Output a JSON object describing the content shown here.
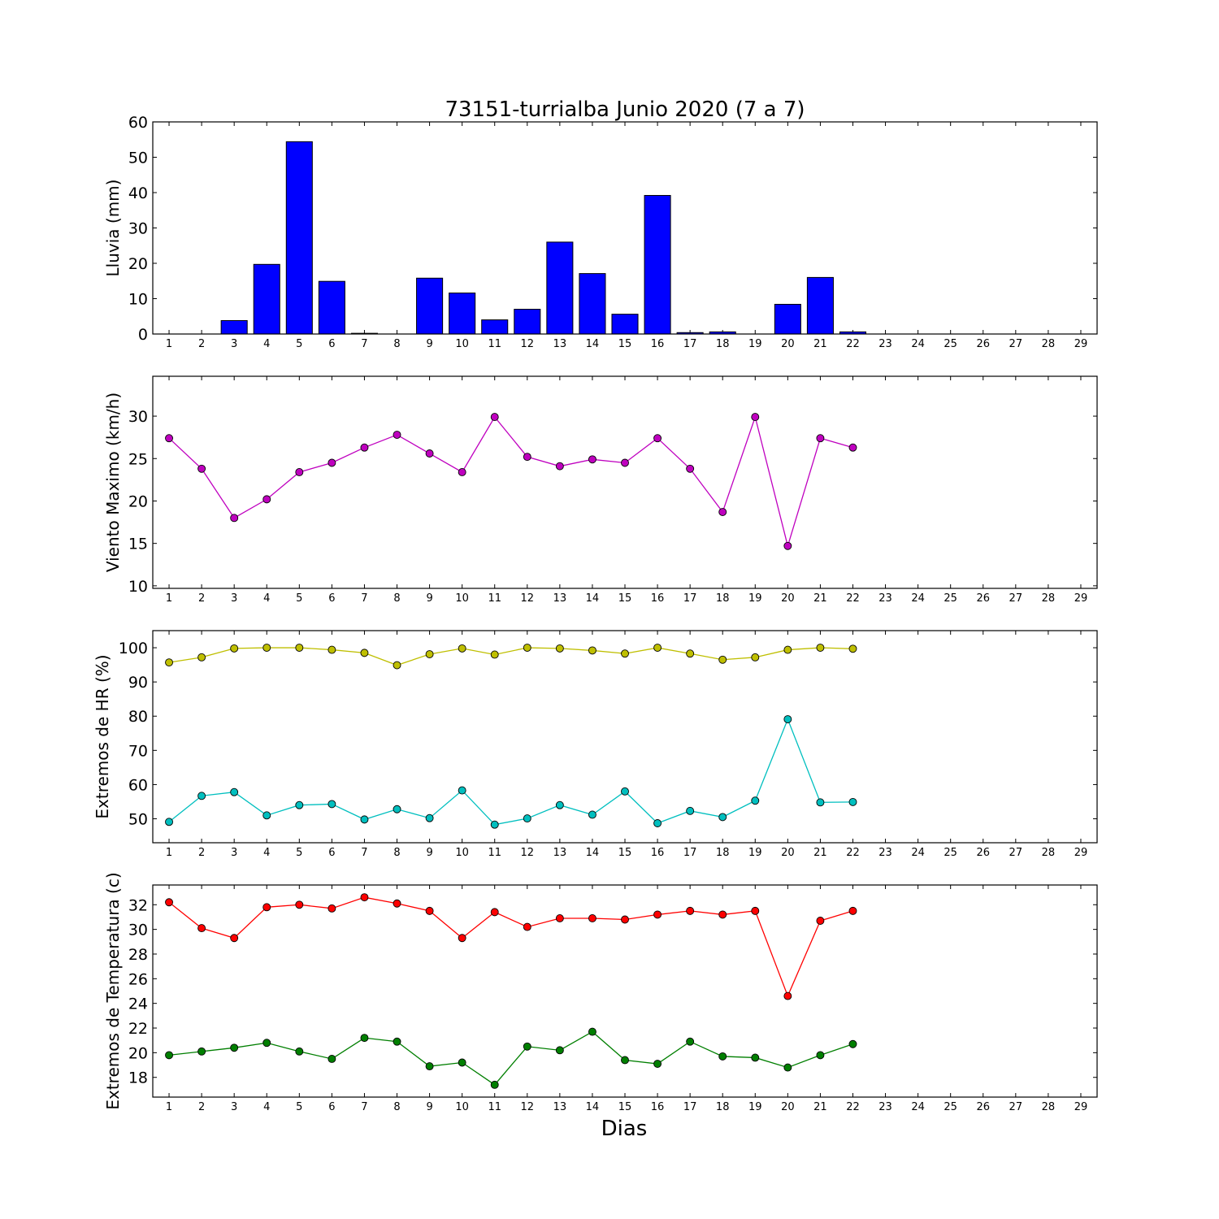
{
  "figure": {
    "title": "73151-turrialba Junio 2020  (7 a 7)",
    "xlabel": "Dias",
    "days": [
      1,
      2,
      3,
      4,
      5,
      6,
      7,
      8,
      9,
      10,
      11,
      12,
      13,
      14,
      15,
      16,
      17,
      18,
      19,
      20,
      21,
      22,
      23,
      24,
      25,
      26,
      27,
      28,
      29
    ]
  },
  "chart_data": [
    {
      "type": "bar",
      "ylabel": "Lluvia (mm)",
      "ylim": [
        0,
        60
      ],
      "yticks": [
        0,
        10,
        20,
        30,
        40,
        50,
        60
      ],
      "xlim": [
        0.5,
        29.5
      ],
      "x": [
        1,
        2,
        3,
        4,
        5,
        6,
        7,
        8,
        9,
        10,
        11,
        12,
        13,
        14,
        15,
        16,
        17,
        18,
        19,
        20,
        21,
        22
      ],
      "series": [
        {
          "color": "#0000ff",
          "values": [
            0,
            0,
            3.8,
            19.7,
            54.4,
            14.9,
            0.2,
            0,
            15.8,
            11.6,
            4.0,
            7.0,
            26.0,
            17.1,
            5.6,
            39.2,
            0.4,
            0.6,
            0,
            8.4,
            16.0,
            0.6
          ]
        }
      ]
    },
    {
      "type": "line",
      "ylabel": "Viento Maximo (km/h)",
      "ylim": [
        9.7,
        34.7
      ],
      "yticks": [
        10,
        15,
        20,
        25,
        30
      ],
      "xlim": [
        0.5,
        29.5
      ],
      "x": [
        1,
        2,
        3,
        4,
        5,
        6,
        7,
        8,
        9,
        10,
        11,
        12,
        13,
        14,
        15,
        16,
        17,
        18,
        19,
        20,
        21,
        22
      ],
      "series": [
        {
          "color": "#bf00bf",
          "values": [
            27.4,
            23.8,
            18.0,
            20.2,
            23.4,
            24.5,
            26.3,
            27.8,
            25.6,
            23.4,
            29.9,
            25.2,
            24.1,
            24.9,
            24.5,
            27.4,
            23.8,
            18.7,
            29.9,
            14.7,
            27.4,
            26.3
          ]
        }
      ]
    },
    {
      "type": "line",
      "ylabel": "Extremos de HR (%)",
      "ylim": [
        43,
        105
      ],
      "yticks": [
        50,
        60,
        70,
        80,
        90,
        100
      ],
      "xlim": [
        0.5,
        29.5
      ],
      "x": [
        1,
        2,
        3,
        4,
        5,
        6,
        7,
        8,
        9,
        10,
        11,
        12,
        13,
        14,
        15,
        16,
        17,
        18,
        19,
        20,
        21,
        22
      ],
      "series": [
        {
          "color": "#bfbf00",
          "values": [
            95.7,
            97.2,
            99.8,
            100.0,
            100.0,
            99.4,
            98.5,
            94.9,
            98.1,
            99.8,
            98.0,
            100.0,
            99.8,
            99.2,
            98.3,
            100.0,
            98.3,
            96.5,
            97.2,
            99.4,
            100.0,
            99.7
          ]
        },
        {
          "color": "#00bfbf",
          "values": [
            49.1,
            56.7,
            57.8,
            51.0,
            54.0,
            54.3,
            49.8,
            52.8,
            50.2,
            58.3,
            48.3,
            50.1,
            54.0,
            51.2,
            58.0,
            48.7,
            52.3,
            50.5,
            55.3,
            79.1,
            54.8,
            54.9
          ]
        }
      ]
    },
    {
      "type": "line",
      "ylabel": "Extremos de Temperatura (c)",
      "ylim": [
        16.4,
        33.6
      ],
      "yticks": [
        18,
        20,
        22,
        24,
        26,
        28,
        30,
        32
      ],
      "xlim": [
        0.5,
        29.5
      ],
      "x": [
        1,
        2,
        3,
        4,
        5,
        6,
        7,
        8,
        9,
        10,
        11,
        12,
        13,
        14,
        15,
        16,
        17,
        18,
        19,
        20,
        21,
        22
      ],
      "series": [
        {
          "color": "#ff0000",
          "values": [
            32.2,
            30.1,
            29.3,
            31.8,
            32.0,
            31.7,
            32.6,
            32.1,
            31.5,
            29.3,
            31.4,
            30.2,
            30.9,
            30.9,
            30.8,
            31.2,
            31.5,
            31.2,
            31.5,
            24.6,
            30.7,
            31.5
          ]
        },
        {
          "color": "#007f00",
          "values": [
            19.8,
            20.1,
            20.4,
            20.8,
            20.1,
            19.5,
            21.2,
            20.9,
            18.9,
            19.2,
            17.4,
            20.5,
            20.2,
            21.7,
            19.4,
            19.1,
            20.9,
            19.7,
            19.6,
            18.8,
            19.8,
            20.7
          ]
        }
      ]
    }
  ]
}
